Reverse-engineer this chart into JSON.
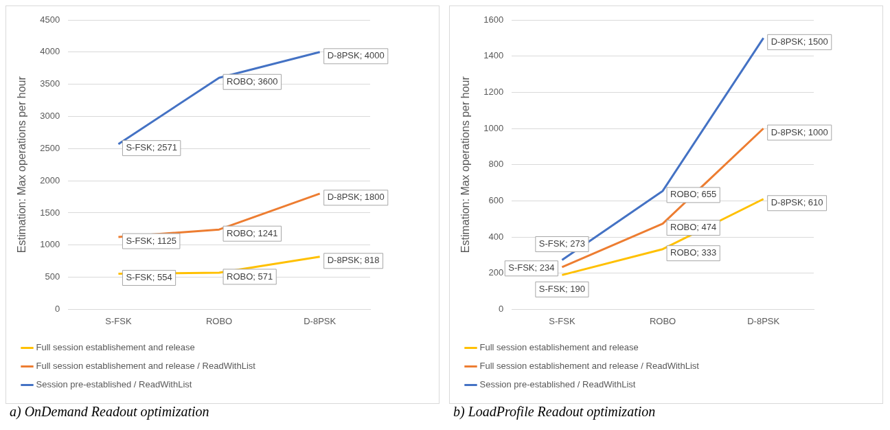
{
  "chart_data": [
    {
      "type": "line",
      "categories": [
        "S-FSK",
        "ROBO",
        "D-8PSK"
      ],
      "ylabel": "Estimation: Max operations per hour",
      "ylim": [
        0,
        4500
      ],
      "yticks": [
        0,
        500,
        1000,
        1500,
        2000,
        2500,
        3000,
        3500,
        4000,
        4500
      ],
      "grid": "y",
      "legend": "bottom",
      "marker": "none",
      "annotations": [
        "a)  OnDemand Readout optimization"
      ],
      "series": [
        {
          "name": "Full session establishement and release",
          "color": "#ffc000",
          "values": [
            554,
            571,
            818
          ],
          "value_labels": [
            "S-FSK; 554",
            "ROBO; 571",
            "D-8PSK; 818"
          ]
        },
        {
          "name": "Full session establishement and release / ReadWithList",
          "color": "#ed7d31",
          "values": [
            1125,
            1241,
            1800
          ],
          "value_labels": [
            "S-FSK; 1125",
            "ROBO; 1241",
            "D-8PSK; 1800"
          ]
        },
        {
          "name": "Session pre-established / ReadWithList",
          "color": "#4472c4",
          "values": [
            2571,
            3600,
            4000
          ],
          "value_labels": [
            "S-FSK; 2571",
            "ROBO; 3600",
            "D-8PSK; 4000"
          ]
        }
      ]
    },
    {
      "type": "line",
      "categories": [
        "S-FSK",
        "ROBO",
        "D-8PSK"
      ],
      "ylabel": "Estimation: Max operations per hour",
      "ylim": [
        0,
        1600
      ],
      "yticks": [
        0,
        200,
        400,
        600,
        800,
        1000,
        1200,
        1400,
        1600
      ],
      "grid": "y",
      "legend": "bottom",
      "marker": "none",
      "annotations": [
        "b)  LoadProfile Readout optimization"
      ],
      "series": [
        {
          "name": "Full session establishement and release",
          "color": "#ffc000",
          "values": [
            190,
            333,
            610
          ],
          "value_labels": [
            "S-FSK; 190",
            "ROBO; 333",
            "D-8PSK; 610"
          ]
        },
        {
          "name": "Full session establishement and release / ReadWithList",
          "color": "#ed7d31",
          "values": [
            234,
            474,
            1000
          ],
          "value_labels": [
            "S-FSK; 234",
            "ROBO; 474",
            "D-8PSK; 1000"
          ]
        },
        {
          "name": "Session pre-established / ReadWithList",
          "color": "#4472c4",
          "values": [
            273,
            655,
            1500
          ],
          "value_labels": [
            "S-FSK; 273",
            "ROBO; 655",
            "D-8PSK; 1500"
          ]
        }
      ]
    }
  ]
}
